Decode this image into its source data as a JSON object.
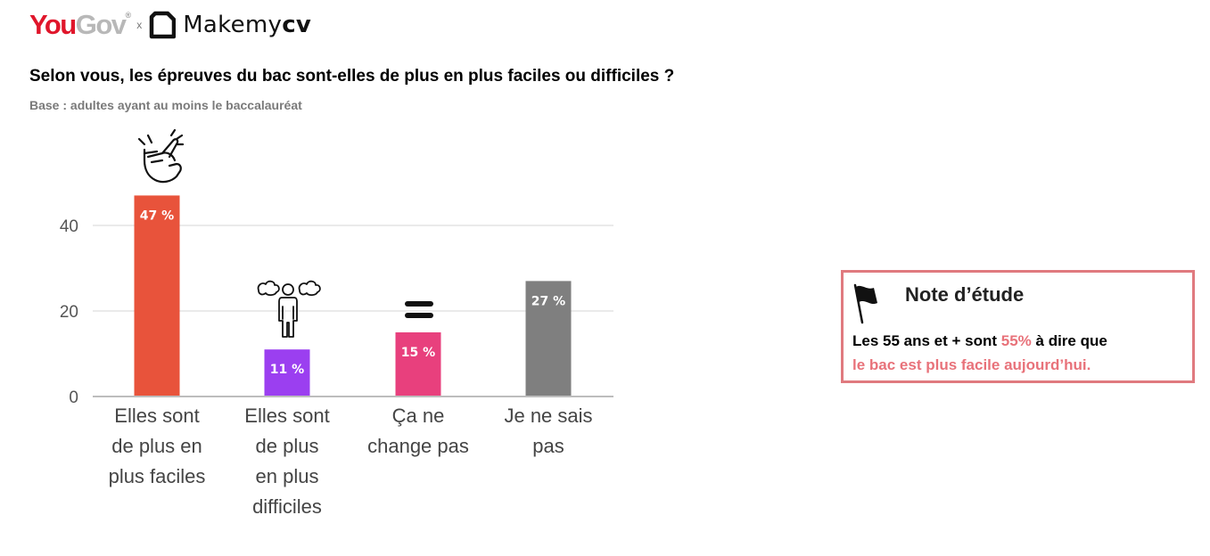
{
  "header": {
    "brand_you": "You",
    "brand_gov": "Gov",
    "brand_reg": "®",
    "cross": "x",
    "partner_1": "Makemy",
    "partner_2": "cv"
  },
  "title": "Selon vous, les épreuves du bac sont-elles de plus en plus faciles ou difficiles ?",
  "subtitle": "Base : adultes ayant au moins le baccalauréat",
  "chart_data": {
    "type": "bar",
    "title": "Selon vous, les épreuves du bac sont-elles de plus en plus faciles ou difficiles ?",
    "subtitle": "Base : adultes ayant au moins le baccalauréat",
    "categories": [
      "Elles sont de plus en plus faciles",
      "Elles sont de plus en plus difficiles",
      "Ça ne change pas",
      "Je ne sais pas"
    ],
    "values": [
      47,
      11,
      15,
      27
    ],
    "value_labels": [
      "47 %",
      "11 %",
      "15 %",
      "27 %"
    ],
    "colors": [
      "#e8533b",
      "#9b3ff0",
      "#e8407d",
      "#7f7f7f"
    ],
    "yticks": [
      0,
      20,
      40
    ],
    "ylim": [
      0,
      48
    ],
    "grid": true,
    "xlabel": "",
    "ylabel": ""
  },
  "category_lines": [
    [
      "Elles sont",
      "de plus en",
      "plus faciles"
    ],
    [
      "Elles sont",
      "de plus",
      "en plus",
      "difficiles"
    ],
    [
      "Ça ne",
      "change pas"
    ],
    [
      "Je ne sais",
      "pas"
    ]
  ],
  "icons": [
    "snap-fingers-icon",
    "frustrated-person-icon",
    "equals-icon"
  ],
  "note": {
    "title": "Note d’étude",
    "line1_a": "Les 55 ans et + sont ",
    "line1_b": "55%",
    "line1_c": " à dire que",
    "line2": "le bac est plus facile aujourd’hui."
  }
}
